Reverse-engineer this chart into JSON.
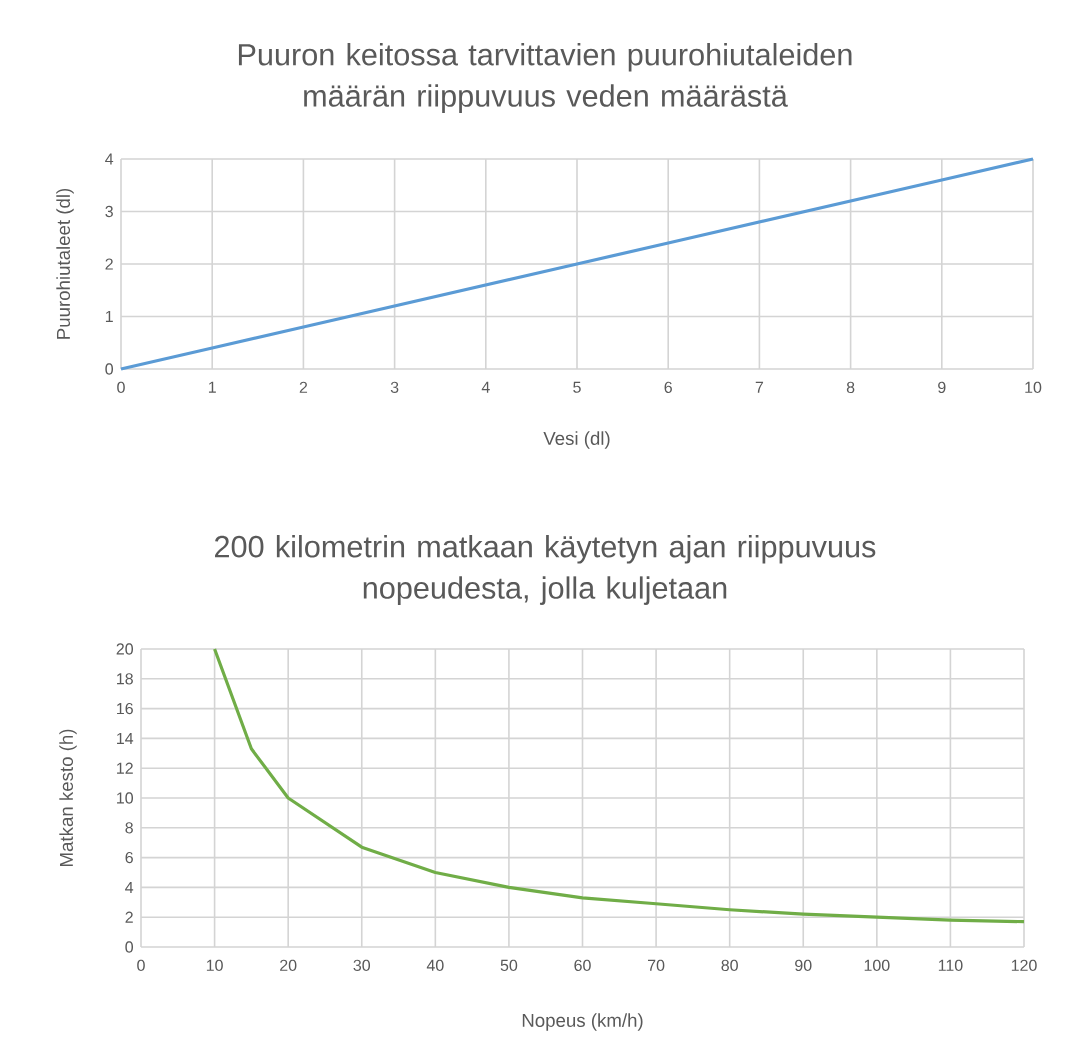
{
  "chart_data": [
    {
      "type": "line",
      "title": "Puuron keitossa tarvittavien puurohiutaleiden\nmäärän riippuvuus veden määrästä",
      "xlabel": "Vesi (dl)",
      "ylabel": "Puurohiutaleet (dl)",
      "x": [
        0,
        1,
        2,
        3,
        4,
        5,
        6,
        7,
        8,
        9,
        10
      ],
      "series": [
        {
          "color": "#5b9bd5",
          "values": [
            0,
            0.4,
            0.8,
            1.2,
            1.6,
            2,
            2.4,
            2.8,
            3.2,
            3.6,
            4
          ]
        }
      ],
      "xlim": [
        0,
        10
      ],
      "ylim": [
        0,
        4
      ],
      "xticks": [
        0,
        1,
        2,
        3,
        4,
        5,
        6,
        7,
        8,
        9,
        10
      ],
      "yticks": [
        0,
        1,
        2,
        3,
        4
      ],
      "grid": true
    },
    {
      "type": "line",
      "title": "200 kilometrin matkaan käytetyn ajan riippuvuus\nnopeudesta, jolla kuljetaan",
      "xlabel": "Nopeus (km/h)",
      "ylabel": "Matkan kesto (h)",
      "x": [
        10,
        15,
        20,
        30,
        40,
        50,
        60,
        70,
        80,
        90,
        100,
        110,
        120
      ],
      "series": [
        {
          "color": "#70ad47",
          "values": [
            20,
            13.3,
            10,
            6.7,
            5,
            4,
            3.3,
            2.9,
            2.5,
            2.2,
            2,
            1.8,
            1.7
          ]
        }
      ],
      "xlim": [
        0,
        120
      ],
      "ylim": [
        0,
        20
      ],
      "xticks": [
        0,
        10,
        20,
        30,
        40,
        50,
        60,
        70,
        80,
        90,
        100,
        110,
        120
      ],
      "yticks": [
        0,
        2,
        4,
        6,
        8,
        10,
        12,
        14,
        16,
        18,
        20
      ],
      "grid": true
    }
  ]
}
